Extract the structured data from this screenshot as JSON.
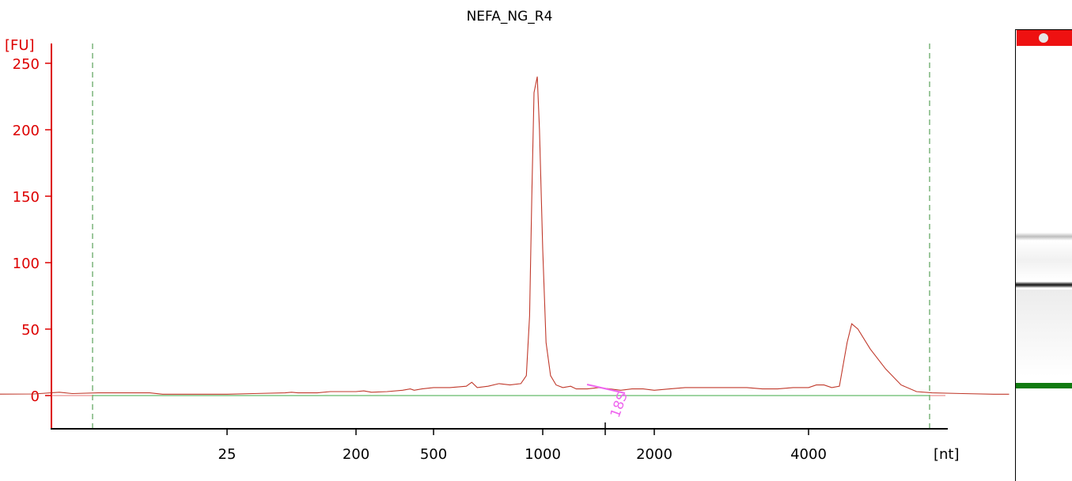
{
  "chart_data": {
    "type": "line",
    "title": "NEFA_NG_R4",
    "ylabel": "[FU]",
    "xlabel": "[nt]",
    "ylim": [
      -25,
      260
    ],
    "yticks": [
      0,
      50,
      100,
      150,
      200,
      250
    ],
    "xticks": [
      "25",
      "200",
      "500",
      "1000",
      "2000",
      "4000"
    ],
    "colors": {
      "trace": "#c0392b",
      "baseline": "#66bb6a",
      "axis": "#dd0000",
      "marker_line": "#3a8f3a",
      "annotation": "#ee66ee"
    },
    "grid": false,
    "series": [
      {
        "values": [
          [
            -2,
            1
          ],
          [
            -1.5,
            1.2
          ],
          [
            -1.3,
            2.5
          ],
          [
            -1.2,
            1.5
          ],
          [
            -1.0,
            2
          ],
          [
            -0.6,
            2
          ],
          [
            -0.5,
            1
          ],
          [
            0,
            1
          ],
          [
            0.2,
            1.5
          ],
          [
            0.45,
            2
          ],
          [
            0.5,
            2.5
          ],
          [
            0.55,
            2
          ],
          [
            0.7,
            2
          ],
          [
            0.8,
            3
          ],
          [
            1.0,
            3
          ],
          [
            1.1,
            3.5
          ],
          [
            1.2,
            2.5
          ],
          [
            1.4,
            3
          ],
          [
            1.6,
            4
          ],
          [
            1.7,
            5
          ],
          [
            1.75,
            4
          ],
          [
            1.85,
            5
          ],
          [
            2.0,
            6
          ],
          [
            2.15,
            6
          ],
          [
            2.3,
            7
          ],
          [
            2.35,
            10
          ],
          [
            2.4,
            6
          ],
          [
            2.5,
            7
          ],
          [
            2.6,
            9
          ],
          [
            2.7,
            8
          ],
          [
            2.8,
            9
          ],
          [
            2.85,
            15
          ],
          [
            2.88,
            60
          ],
          [
            2.9,
            150
          ],
          [
            2.92,
            228
          ],
          [
            2.95,
            240
          ],
          [
            2.97,
            200
          ],
          [
            3.0,
            110
          ],
          [
            3.03,
            40
          ],
          [
            3.07,
            15
          ],
          [
            3.12,
            8
          ],
          [
            3.18,
            6
          ],
          [
            3.25,
            7
          ],
          [
            3.3,
            5
          ],
          [
            3.4,
            5
          ],
          [
            3.5,
            6
          ],
          [
            3.6,
            5
          ],
          [
            3.7,
            4
          ],
          [
            3.8,
            5
          ],
          [
            3.9,
            5
          ],
          [
            4.0,
            4
          ],
          [
            4.1,
            5
          ],
          [
            4.2,
            6
          ],
          [
            4.3,
            6
          ],
          [
            4.4,
            6
          ],
          [
            4.5,
            6
          ],
          [
            4.6,
            6
          ],
          [
            4.7,
            5
          ],
          [
            4.8,
            5
          ],
          [
            4.9,
            6
          ],
          [
            5.0,
            6
          ],
          [
            5.05,
            8
          ],
          [
            5.1,
            8
          ],
          [
            5.15,
            6
          ],
          [
            5.2,
            7
          ],
          [
            5.25,
            40
          ],
          [
            5.28,
            54
          ],
          [
            5.32,
            50
          ],
          [
            5.4,
            35
          ],
          [
            5.5,
            20
          ],
          [
            5.6,
            8
          ],
          [
            5.7,
            3
          ],
          [
            5.8,
            2
          ],
          [
            6.0,
            1.5
          ],
          [
            6.2,
            1
          ],
          [
            6.3,
            1
          ]
        ]
      }
    ],
    "annotations": [
      {
        "text": "18S"
      }
    ]
  }
}
